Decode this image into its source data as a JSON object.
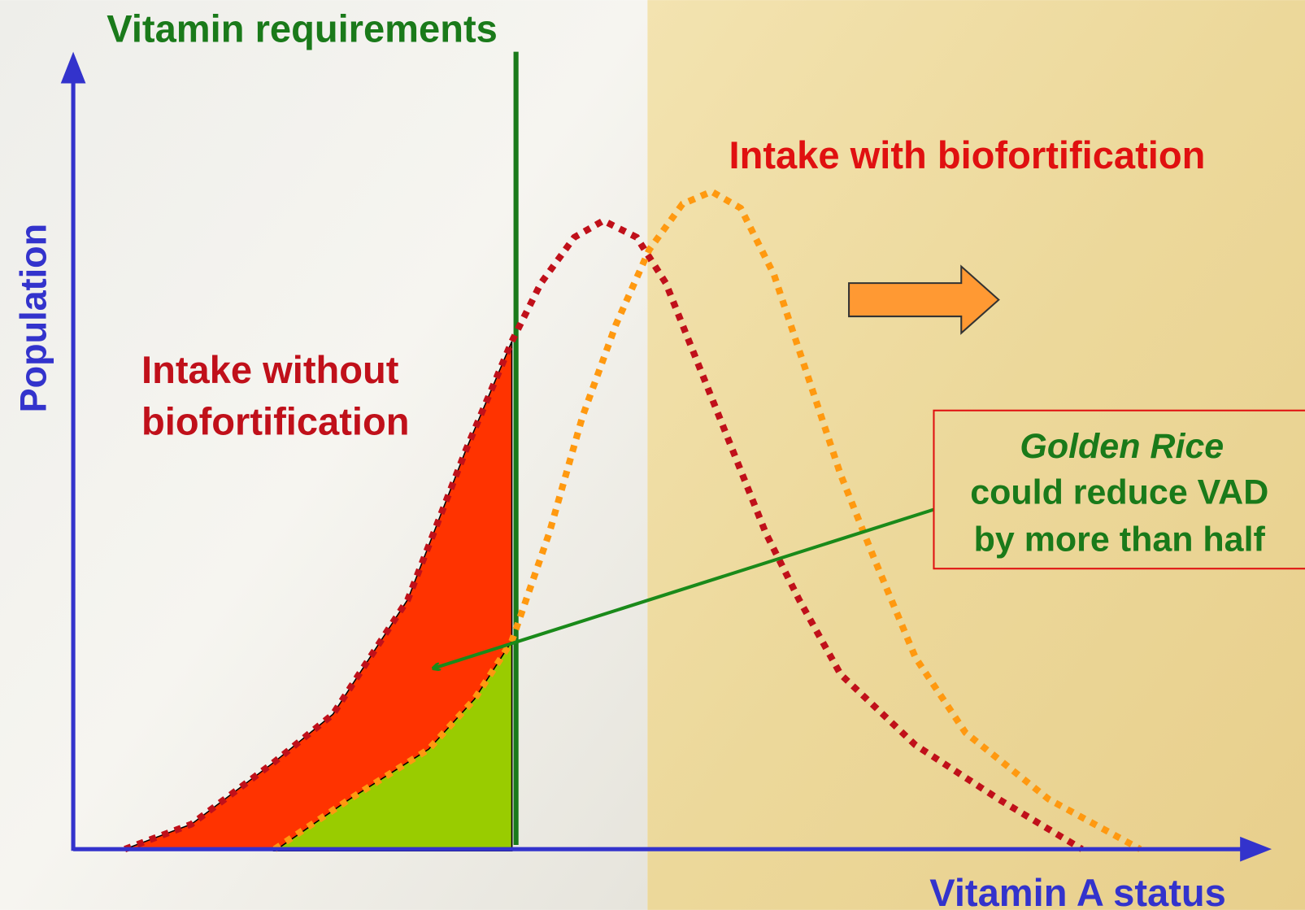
{
  "title": "Vitamin requirements",
  "y_axis_label": "Population",
  "x_axis_label": "Vitamin A status",
  "curve_labels": {
    "with": "Intake with biofortification",
    "without": [
      "Intake without",
      "biofortification"
    ]
  },
  "callout": [
    "Golden Rice",
    "could reduce VAD",
    "by more than half"
  ]
}
